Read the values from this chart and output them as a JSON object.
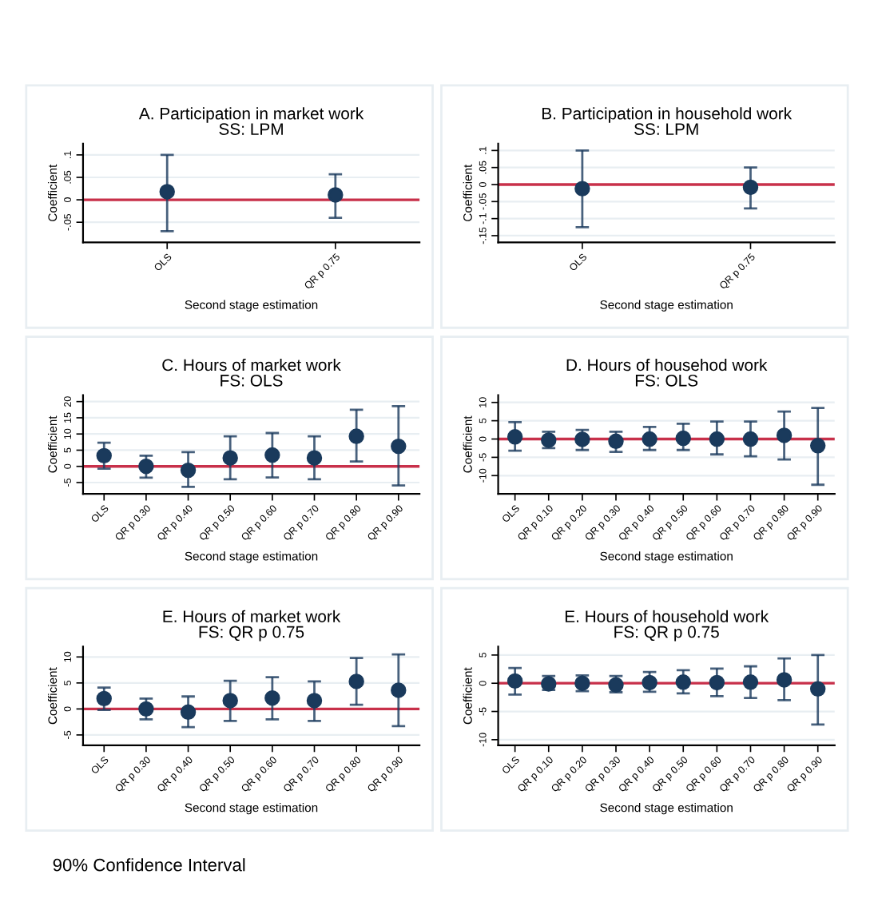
{
  "chart_data": [
    {
      "type": "scatter",
      "title": "A. Participation in market work\nSS: LPM",
      "xlabel": "Second stage estimation",
      "ylabel": "Coefficient",
      "categories": [
        "OLS",
        "QR p 0.75"
      ],
      "series": [
        {
          "color": "#1a3a5c",
          "values": [
            0.018,
            0.011
          ],
          "errors": [
            [
              -0.07,
              0.1
            ],
            [
              -0.04,
              0.057
            ]
          ]
        }
      ],
      "ylim": [
        -0.095,
        0.125
      ],
      "yticks": [
        {
          "value": -0.05,
          "label": "-.05"
        },
        {
          "value": 0,
          "label": "0"
        },
        {
          "value": 0.05,
          "label": ".05"
        },
        {
          "value": 0.1,
          "label": ".1"
        }
      ],
      "ref_lines": [
        {
          "axis": "y",
          "value": 0,
          "color": "#c8304a"
        }
      ],
      "grid": "y",
      "marker": "circle"
    },
    {
      "type": "scatter",
      "title": "B. Participation in household work\nSS: LPM",
      "xlabel": "Second stage estimation",
      "ylabel": "Coefficient",
      "categories": [
        "OLS",
        "QR p 0.75"
      ],
      "series": [
        {
          "color": "#1a3a5c",
          "values": [
            -0.012,
            -0.008
          ],
          "errors": [
            [
              -0.125,
              0.1
            ],
            [
              -0.07,
              0.05
            ]
          ]
        }
      ],
      "ylim": [
        -0.17,
        0.12
      ],
      "yticks": [
        {
          "value": -0.15,
          "label": "-.15"
        },
        {
          "value": -0.1,
          "label": "-.1"
        },
        {
          "value": -0.05,
          "label": "-.05"
        },
        {
          "value": 0,
          "label": "0"
        },
        {
          "value": 0.05,
          "label": ".05"
        },
        {
          "value": 0.1,
          "label": ".1"
        }
      ],
      "ref_lines": [
        {
          "axis": "y",
          "value": 0,
          "color": "#c8304a"
        }
      ],
      "grid": "y",
      "marker": "circle"
    },
    {
      "type": "scatter",
      "title": "C. Hours of market work\nFS: OLS",
      "xlabel": "Second stage estimation",
      "ylabel": "Coefficient",
      "categories": [
        "OLS",
        "QR p 0.30",
        "QR p 0.40",
        "QR p 0.50",
        "QR p 0.60",
        "QR p 0.70",
        "QR p 0.80",
        "QR p 0.90"
      ],
      "series": [
        {
          "color": "#1a3a5c",
          "values": [
            3.3,
            0,
            -1.2,
            2.6,
            3.5,
            2.6,
            9.3,
            6.2
          ],
          "errors": [
            [
              -0.7,
              7.3
            ],
            [
              -3.5,
              3.3
            ],
            [
              -6.3,
              4.4
            ],
            [
              -4,
              9.3
            ],
            [
              -3.4,
              10.3
            ],
            [
              -4,
              9.3
            ],
            [
              1.5,
              17.5
            ],
            [
              -5.9,
              18.6
            ]
          ]
        }
      ],
      "ylim": [
        -8.5,
        22
      ],
      "yticks": [
        -5,
        0,
        5,
        10,
        15,
        20
      ],
      "ref_lines": [
        {
          "axis": "y",
          "value": 0,
          "color": "#c8304a"
        }
      ],
      "grid": "y",
      "marker": "circle"
    },
    {
      "type": "scatter",
      "title": "D. Hours of househod work\nFS: OLS",
      "xlabel": "Second stage estimation",
      "ylabel": "Coefficient",
      "categories": [
        "OLS",
        "QR p 0.10",
        "QR p 0.20",
        "QR p 0.30",
        "QR p 0.40",
        "QR p 0.50",
        "QR p 0.60",
        "QR p 0.70",
        "QR p 0.80",
        "QR p 0.90"
      ],
      "series": [
        {
          "color": "#1a3a5c",
          "values": [
            0.6,
            -0.3,
            -0.1,
            -0.6,
            0,
            0.2,
            0,
            0,
            1,
            -1.8
          ],
          "errors": [
            [
              -3.2,
              4.6
            ],
            [
              -2.5,
              2
            ],
            [
              -3,
              2.5
            ],
            [
              -3.5,
              2
            ],
            [
              -3,
              3.3
            ],
            [
              -3,
              4.2
            ],
            [
              -4.2,
              4.8
            ],
            [
              -4.7,
              4.8
            ],
            [
              -5.6,
              7.5
            ],
            [
              -12.5,
              8.5
            ]
          ]
        }
      ],
      "ylim": [
        -15,
        12
      ],
      "yticks": [
        -10,
        -5,
        0,
        5,
        10
      ],
      "ref_lines": [
        {
          "axis": "y",
          "value": 0,
          "color": "#c8304a"
        }
      ],
      "grid": "y",
      "marker": "circle"
    },
    {
      "type": "scatter",
      "title": "E. Hours of market work\nFS: QR p 0.75",
      "xlabel": "Second stage estimation",
      "ylabel": "Coefficient",
      "categories": [
        "OLS",
        "QR p 0.30",
        "QR p 0.40",
        "QR p 0.50",
        "QR p 0.60",
        "QR p 0.70",
        "QR p 0.80",
        "QR p 0.90"
      ],
      "series": [
        {
          "color": "#1a3a5c",
          "values": [
            2,
            0,
            -0.6,
            1.6,
            2.1,
            1.6,
            5.3,
            3.6
          ],
          "errors": [
            [
              -0.2,
              4.1
            ],
            [
              -2,
              2
            ],
            [
              -3.5,
              2.4
            ],
            [
              -2.3,
              5.4
            ],
            [
              -2,
              6.1
            ],
            [
              -2.3,
              5.3
            ],
            [
              0.8,
              9.8
            ],
            [
              -3.3,
              10.5
            ]
          ]
        }
      ],
      "ylim": [
        -7,
        12
      ],
      "yticks": [
        -5,
        0,
        5,
        10
      ],
      "ref_lines": [
        {
          "axis": "y",
          "value": 0,
          "color": "#c8304a"
        }
      ],
      "grid": "y",
      "marker": "circle",
      "annotations": [
        "90% Confidence Interval"
      ]
    },
    {
      "type": "scatter",
      "title": "E. Hours of household work\nFS: QR p 0.75",
      "xlabel": "Second stage estimation",
      "ylabel": "Coefficient",
      "categories": [
        "OLS",
        "QR p 0.10",
        "QR p 0.20",
        "QR p 0.30",
        "QR p 0.40",
        "QR p 0.50",
        "QR p 0.60",
        "QR p 0.70",
        "QR p 0.80",
        "QR p 0.90"
      ],
      "series": [
        {
          "color": "#1a3a5c",
          "values": [
            0.4,
            -0.1,
            0,
            -0.3,
            0.1,
            0.2,
            0.1,
            0.2,
            0.6,
            -1
          ],
          "errors": [
            [
              -2,
              2.7
            ],
            [
              -1.2,
              1.3
            ],
            [
              -1.4,
              1.4
            ],
            [
              -1.6,
              1.3
            ],
            [
              -1.5,
              2
            ],
            [
              -1.8,
              2.3
            ],
            [
              -2.3,
              2.6
            ],
            [
              -2.6,
              3
            ],
            [
              -3,
              4.4
            ],
            [
              -7.3,
              5
            ]
          ]
        }
      ],
      "ylim": [
        -11,
        6.5
      ],
      "yticks": [
        -10,
        -5,
        0,
        5
      ],
      "ref_lines": [
        {
          "axis": "y",
          "value": 0,
          "color": "#c8304a"
        }
      ],
      "grid": "y",
      "marker": "circle"
    }
  ]
}
